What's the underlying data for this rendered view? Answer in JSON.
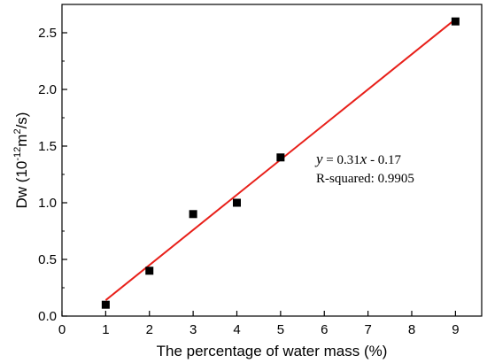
{
  "chart_data": {
    "type": "scatter",
    "title": "",
    "xlabel": "The percentage of water mass (%)",
    "ylabel": {
      "prefix": "Dw (10",
      "exp1": "-12",
      "mid": "m",
      "exp2": "2",
      "suffix": "/s)"
    },
    "xlim": [
      0,
      9.6
    ],
    "ylim": [
      0,
      2.75
    ],
    "xticks": [
      0,
      1,
      2,
      3,
      4,
      5,
      6,
      7,
      8,
      9
    ],
    "xtick_labels": [
      "0",
      "1",
      "2",
      "3",
      "4",
      "5",
      "6",
      "7",
      "8",
      "9"
    ],
    "yticks": [
      0,
      0.5,
      1.0,
      1.5,
      2.0,
      2.5
    ],
    "ytick_labels": [
      "0.0",
      "0.5",
      "1.0",
      "1.5",
      "2.0",
      "2.5"
    ],
    "grid": false,
    "series": [
      {
        "marker": "square",
        "color": "#000000",
        "x": [
          1,
          2,
          3,
          4,
          5,
          9
        ],
        "y": [
          0.1,
          0.4,
          0.9,
          1.0,
          1.4,
          2.6
        ]
      }
    ],
    "fit_line": {
      "color": "#e8201a",
      "slope": 0.31,
      "intercept": -0.17,
      "x_range": [
        1,
        9
      ]
    },
    "annotation": {
      "eq_y": "y",
      "eq_mid": " = 0.31",
      "eq_x": "x",
      "eq_tail": " - 0.17",
      "r_squared": "R-squared: 0.9905"
    }
  }
}
